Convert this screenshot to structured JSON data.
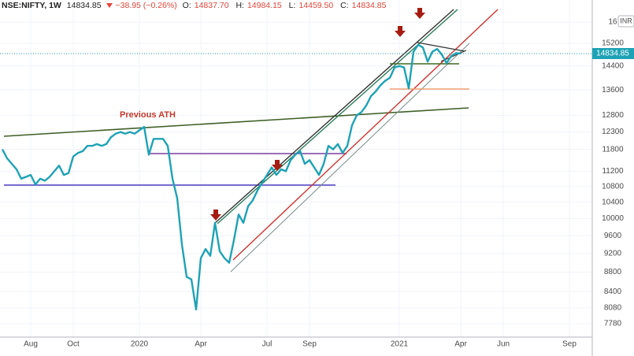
{
  "header": {
    "symbol": "NSE:NIFTY, 1W",
    "last": "14834.85",
    "change": "−38.95 (−0.26%)",
    "ohlc": [
      {
        "label": "O:",
        "value": "14837.70"
      },
      {
        "label": "H:",
        "value": "14984.15"
      },
      {
        "label": "L:",
        "value": "14459.50"
      },
      {
        "label": "C:",
        "value": "14834.85"
      }
    ],
    "currency": "INR"
  },
  "chart_data": {
    "type": "line",
    "log_scale": true,
    "grid": true,
    "annotations": [
      "Previous ATH"
    ],
    "categories": [
      null,
      null,
      null,
      null,
      null,
      null,
      "Aug",
      null,
      null,
      null,
      null,
      null,
      null,
      null,
      null,
      "Oct",
      null,
      null,
      null,
      null,
      null,
      null,
      null,
      null,
      null,
      null,
      null,
      null,
      null,
      "2020",
      null,
      null,
      null,
      null,
      null,
      null,
      null,
      null,
      null,
      null,
      null,
      null,
      "Apr",
      null,
      null,
      null,
      null,
      null,
      null,
      null,
      null,
      null,
      null,
      null,
      null,
      null,
      "Jul",
      null,
      null,
      null,
      null,
      null,
      null,
      null,
      null,
      "Sep",
      null,
      null,
      null,
      null,
      null,
      null,
      null,
      null,
      null,
      null,
      null,
      null,
      null,
      null,
      null,
      null,
      null,
      null,
      "2021",
      null,
      null,
      null,
      null,
      null,
      null,
      null,
      null,
      null,
      null,
      null,
      null,
      "Apr",
      null,
      null,
      null,
      null,
      null,
      null,
      null,
      null,
      "Jun",
      null,
      null,
      null,
      null,
      null,
      null,
      null,
      null,
      null,
      null,
      null,
      null,
      null,
      "Sep"
    ],
    "series": [
      {
        "name": "NSE:NIFTY",
        "color": "#1ea2b5",
        "values": [
          11800,
          11550,
          11400,
          11250,
          11000,
          11050,
          11100,
          10850,
          11000,
          10950,
          11050,
          11200,
          11350,
          11100,
          11150,
          11600,
          11700,
          11750,
          11900,
          11900,
          11950,
          11900,
          11950,
          12150,
          12250,
          12300,
          12250,
          12300,
          12250,
          12350,
          12450,
          11650,
          12100,
          12100,
          12100,
          11900,
          11000,
          10500,
          9400,
          8700,
          8650,
          8050,
          9100,
          9300,
          9150,
          9900,
          9250,
          9100,
          9000,
          9500,
          10100,
          9900,
          10300,
          10450,
          10700,
          10900,
          11100,
          11300,
          11100,
          11250,
          11200,
          11500,
          11650,
          11750,
          11400,
          11500,
          11300,
          11100,
          11400,
          11900,
          11800,
          11950,
          11700,
          11900,
          12500,
          12800,
          12900,
          13100,
          13400,
          13550,
          13750,
          13900,
          14000,
          14350,
          14400,
          14350,
          13650,
          14900,
          15150,
          15050,
          14550,
          14900,
          15000,
          14800,
          14500,
          14750,
          14850,
          14834.85,
          null,
          null,
          null,
          null,
          null,
          null,
          null,
          null,
          null,
          null,
          null,
          null,
          null,
          null,
          null,
          null,
          null,
          null,
          null,
          null,
          null,
          null,
          null
        ]
      }
    ],
    "ylim": [
      7535,
      16860
    ],
    "yticks": [
      7780,
      8080,
      8400,
      8800,
      9200,
      9600,
      10000,
      10400,
      10800,
      11200,
      11800,
      12300,
      12800,
      13600,
      14400,
      15200,
      {
        "value": 16000,
        "label": "16"
      }
    ]
  }
}
